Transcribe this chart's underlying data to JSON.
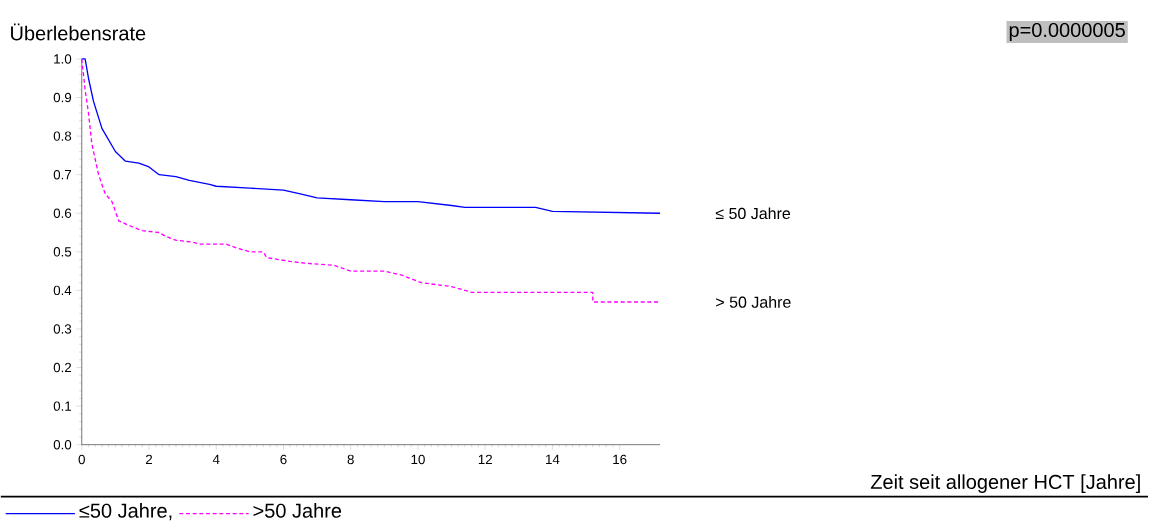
{
  "chart_data": {
    "type": "line",
    "annotations": [
      "≤ 50 Jahre",
      "> 50 Jahre",
      "Überlebensrate",
      "p=0.0000005",
      "Zeit seit allogener HCT [Jahre]"
    ],
    "xlim": [
      0,
      17.2
    ],
    "xticks": [
      0,
      2,
      4,
      6,
      8,
      10,
      12,
      14,
      16
    ],
    "ylim": [
      0,
      1
    ],
    "yticks": [
      {
        "value": 0,
        "label": "0.0"
      },
      0.1,
      0.2,
      0.3,
      0.4,
      0.5,
      0.6,
      0.7,
      0.8,
      0.9,
      {
        "value": 1,
        "label": "1.0"
      }
    ],
    "legend": "bottom",
    "grid": false,
    "series": [
      {
        "name": "≤50 Jahre,",
        "color": "#0000ff",
        "line_style": "solid",
        "x": [
          0,
          0.1,
          0.2,
          0.35,
          0.6,
          0.8,
          1.0,
          1.3,
          1.7,
          2.0,
          2.3,
          2.8,
          3.2,
          3.8,
          4.0,
          5.0,
          6.0,
          6.5,
          7.0,
          8.0,
          9.0,
          10.0,
          11.0,
          11.4,
          13.5,
          14.0,
          17.2
        ],
        "values": [
          1.0,
          1.0,
          0.95,
          0.89,
          0.82,
          0.79,
          0.76,
          0.735,
          0.73,
          0.72,
          0.7,
          0.695,
          0.685,
          0.675,
          0.67,
          0.665,
          0.66,
          0.65,
          0.64,
          0.635,
          0.63,
          0.63,
          0.62,
          0.615,
          0.615,
          0.605,
          0.6
        ]
      },
      {
        "name": ">50 Jahre",
        "color": "#ff00ff",
        "line_style": "dashed",
        "x": [
          0,
          0.1,
          0.2,
          0.3,
          0.5,
          0.7,
          0.9,
          1.1,
          1.5,
          1.8,
          2.3,
          2.5,
          2.8,
          3.3,
          3.5,
          4.3,
          4.6,
          5.0,
          5.4,
          5.5,
          6.2,
          6.7,
          7.5,
          8.0,
          9.0,
          9.5,
          10.1,
          11.0,
          11.6,
          15.2,
          15.2,
          17.2
        ],
        "values": [
          1.0,
          0.92,
          0.86,
          0.78,
          0.7,
          0.65,
          0.63,
          0.58,
          0.565,
          0.555,
          0.55,
          0.54,
          0.53,
          0.525,
          0.52,
          0.52,
          0.51,
          0.5,
          0.5,
          0.485,
          0.475,
          0.47,
          0.465,
          0.45,
          0.45,
          0.44,
          0.42,
          0.41,
          0.395,
          0.395,
          0.37,
          0.37
        ]
      }
    ]
  }
}
